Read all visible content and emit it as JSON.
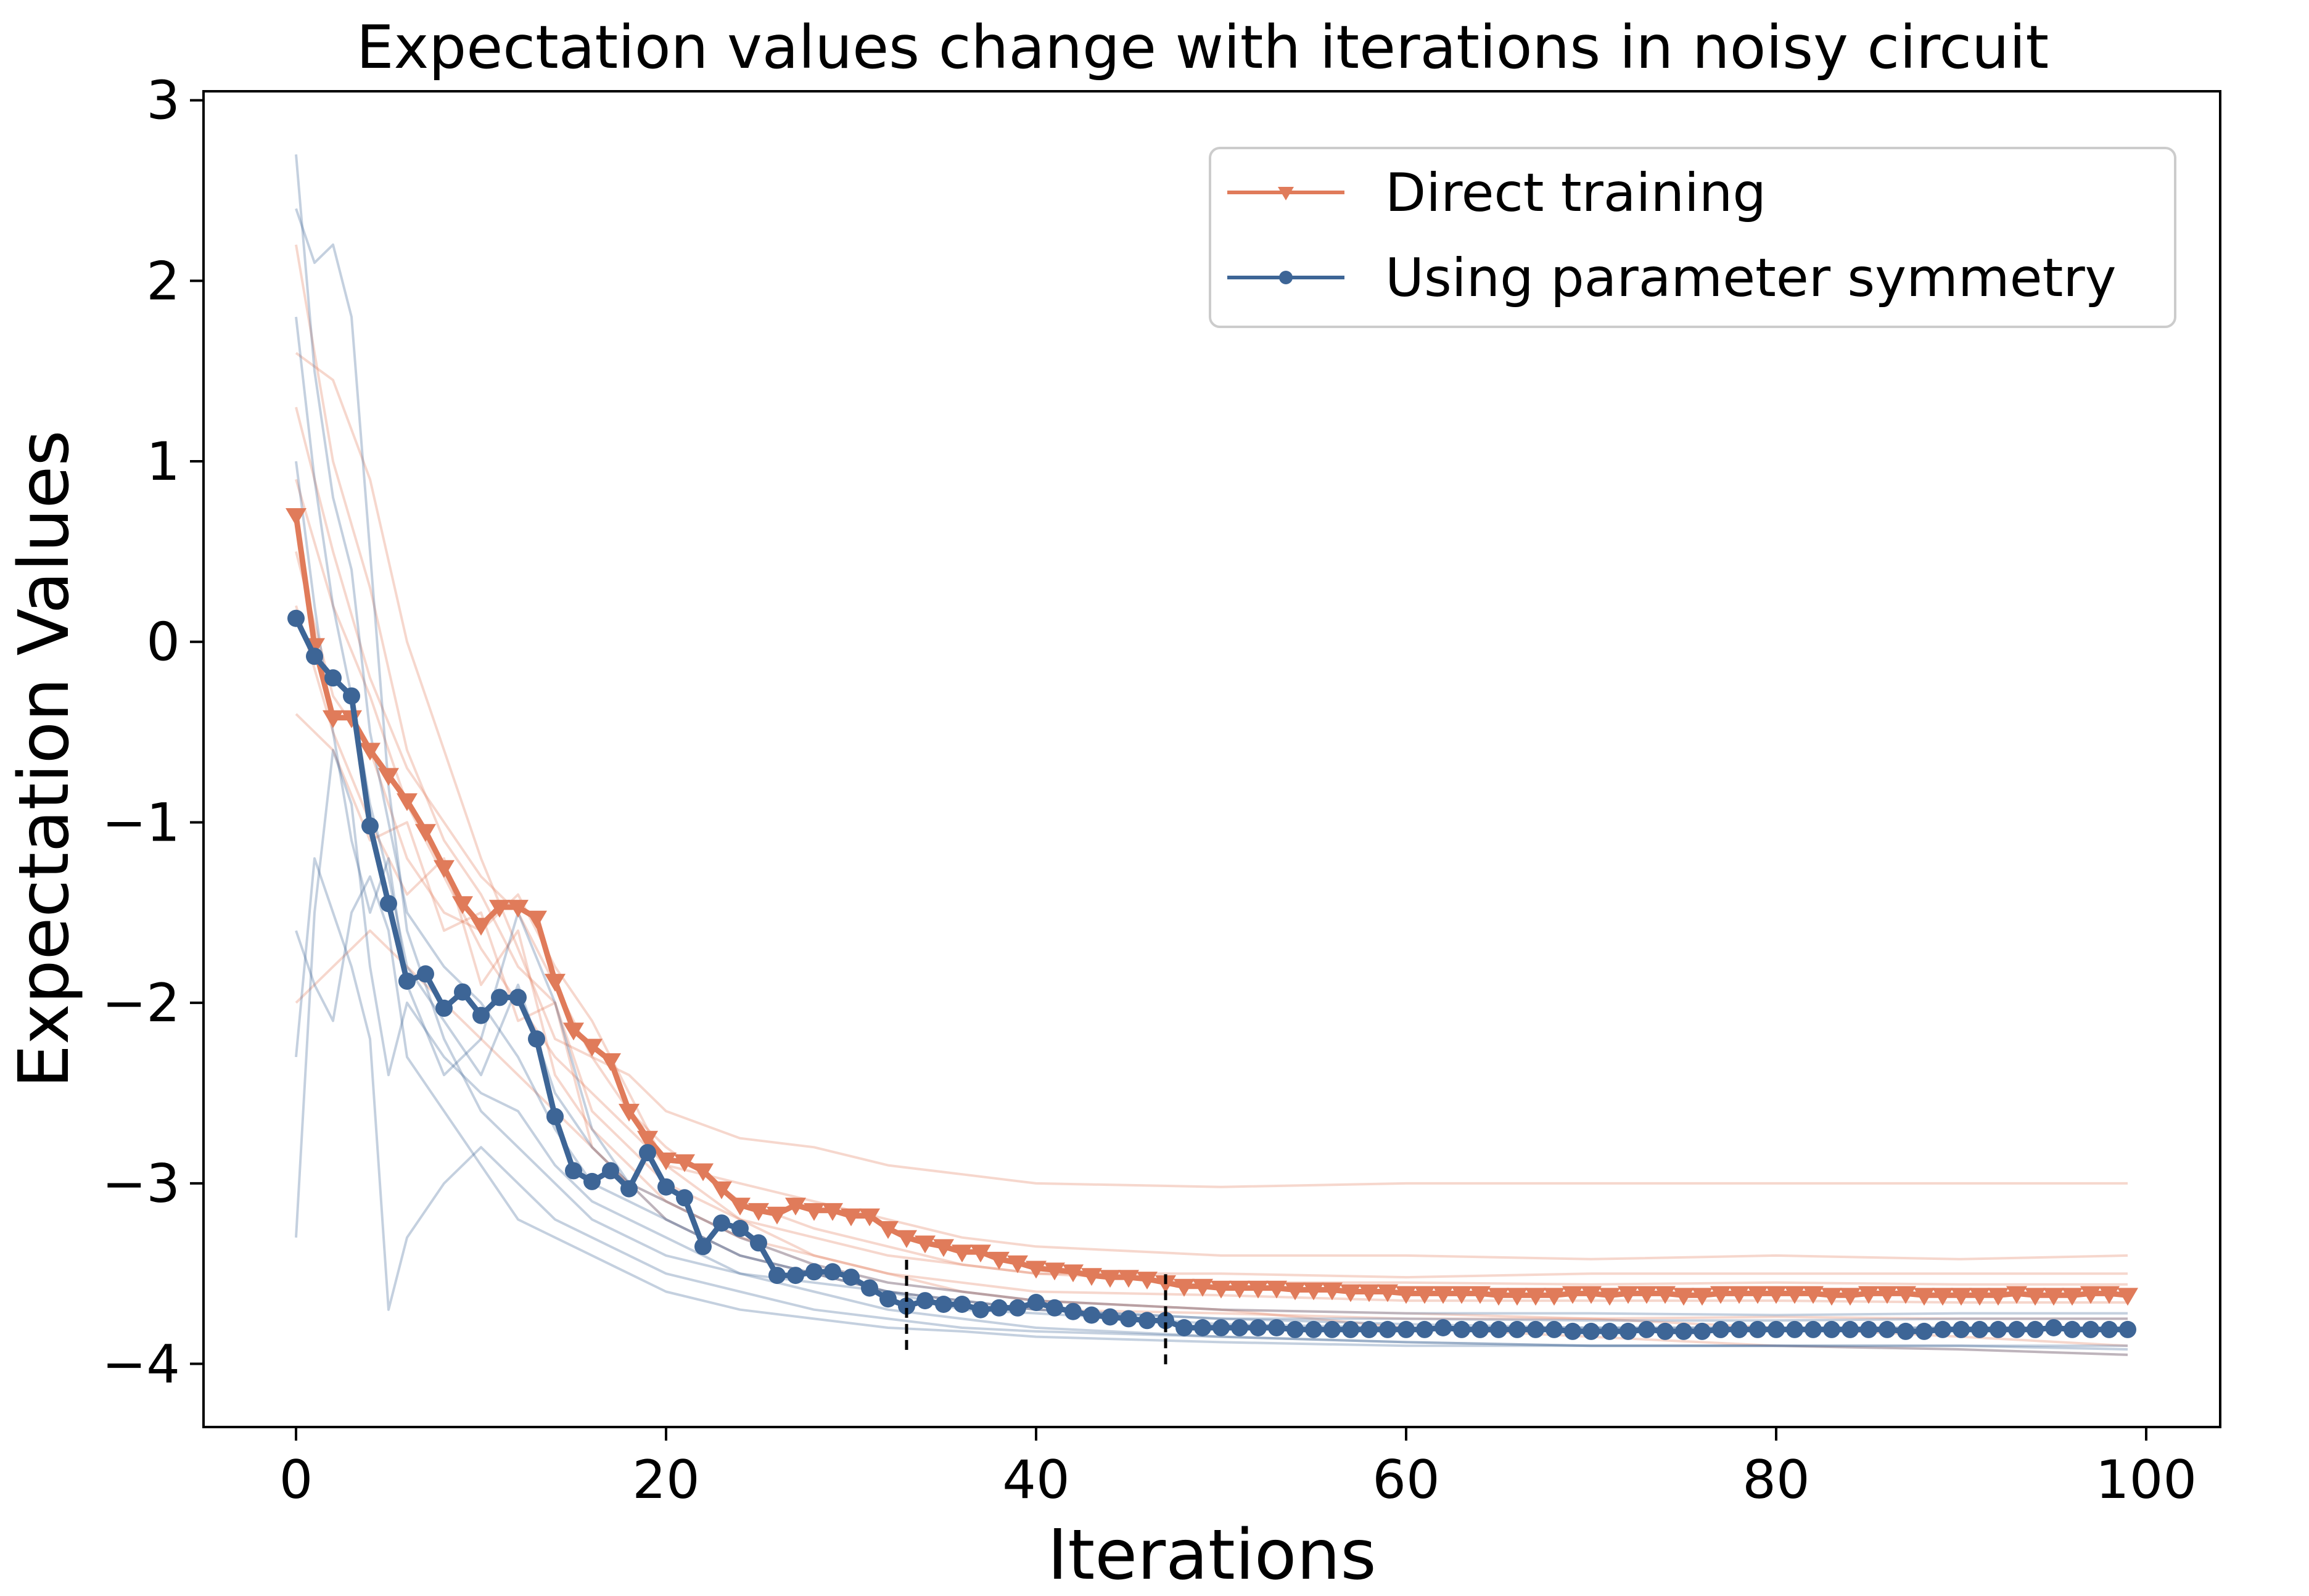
{
  "chart_data": {
    "type": "line",
    "title": "Expectation values change with iterations in noisy circuit",
    "xlabel": "Iterations",
    "ylabel": "Expectation Values",
    "xlim": [
      -5,
      104
    ],
    "ylim": [
      -4.35,
      3.05
    ],
    "xticks": [
      0,
      20,
      40,
      60,
      80,
      100
    ],
    "yticks": [
      3,
      2,
      1,
      0,
      -1,
      -2,
      -3,
      -4
    ],
    "xtick_labels": [
      "0",
      "20",
      "40",
      "60",
      "80",
      "100"
    ],
    "ytick_labels": [
      "3",
      "2",
      "1",
      "0",
      "−1",
      "−2",
      "−3",
      "−4"
    ],
    "grid": false,
    "legend_position": "top-right",
    "legend": [
      {
        "label": "Direct training",
        "color": "#e07b5a",
        "marker": "triangle-down"
      },
      {
        "label": "Using parameter symmetry",
        "color": "#3d6596",
        "marker": "circle"
      }
    ],
    "vertical_markers": [
      33,
      47
    ],
    "series": [
      {
        "name": "Direct training",
        "color": "#e07b5a",
        "marker": "triangle-down",
        "x": [
          0,
          1,
          2,
          3,
          4,
          5,
          6,
          7,
          8,
          9,
          10,
          11,
          12,
          13,
          14,
          15,
          16,
          17,
          18,
          19,
          20,
          21,
          22,
          23,
          24,
          25,
          26,
          27,
          28,
          29,
          30,
          31,
          32,
          33,
          34,
          35,
          36,
          37,
          38,
          39,
          40,
          41,
          42,
          43,
          44,
          45,
          46,
          47,
          48,
          49,
          50,
          51,
          52,
          53,
          54,
          55,
          56,
          57,
          58,
          59,
          60,
          61,
          62,
          63,
          64,
          65,
          66,
          67,
          68,
          69,
          70,
          71,
          72,
          73,
          74,
          75,
          76,
          77,
          78,
          79,
          80,
          81,
          82,
          83,
          84,
          85,
          86,
          87,
          88,
          89,
          90,
          91,
          92,
          93,
          94,
          95,
          96,
          97,
          98,
          99
        ],
        "values": [
          0.7,
          -0.02,
          -0.42,
          -0.42,
          -0.6,
          -0.74,
          -0.88,
          -1.05,
          -1.25,
          -1.45,
          -1.57,
          -1.47,
          -1.47,
          -1.53,
          -1.88,
          -2.15,
          -2.24,
          -2.32,
          -2.6,
          -2.75,
          -2.87,
          -2.88,
          -2.93,
          -3.03,
          -3.12,
          -3.15,
          -3.17,
          -3.12,
          -3.15,
          -3.15,
          -3.18,
          -3.18,
          -3.25,
          -3.3,
          -3.33,
          -3.35,
          -3.38,
          -3.38,
          -3.42,
          -3.44,
          -3.47,
          -3.48,
          -3.49,
          -3.51,
          -3.52,
          -3.52,
          -3.53,
          -3.55,
          -3.57,
          -3.57,
          -3.58,
          -3.58,
          -3.58,
          -3.58,
          -3.59,
          -3.59,
          -3.59,
          -3.6,
          -3.6,
          -3.6,
          -3.61,
          -3.61,
          -3.61,
          -3.61,
          -3.61,
          -3.62,
          -3.62,
          -3.62,
          -3.62,
          -3.61,
          -3.61,
          -3.62,
          -3.61,
          -3.61,
          -3.61,
          -3.62,
          -3.62,
          -3.61,
          -3.61,
          -3.61,
          -3.61,
          -3.61,
          -3.61,
          -3.62,
          -3.62,
          -3.61,
          -3.61,
          -3.61,
          -3.62,
          -3.62,
          -3.62,
          -3.62,
          -3.62,
          -3.61,
          -3.62,
          -3.62,
          -3.62,
          -3.61,
          -3.61,
          -3.62
        ]
      },
      {
        "name": "Using parameter symmetry",
        "color": "#3d6596",
        "marker": "circle",
        "x": [
          0,
          1,
          2,
          3,
          4,
          5,
          6,
          7,
          8,
          9,
          10,
          11,
          12,
          13,
          14,
          15,
          16,
          17,
          18,
          19,
          20,
          21,
          22,
          23,
          24,
          25,
          26,
          27,
          28,
          29,
          30,
          31,
          32,
          33,
          34,
          35,
          36,
          37,
          38,
          39,
          40,
          41,
          42,
          43,
          44,
          45,
          46,
          47,
          48,
          49,
          50,
          51,
          52,
          53,
          54,
          55,
          56,
          57,
          58,
          59,
          60,
          61,
          62,
          63,
          64,
          65,
          66,
          67,
          68,
          69,
          70,
          71,
          72,
          73,
          74,
          75,
          76,
          77,
          78,
          79,
          80,
          81,
          82,
          83,
          84,
          85,
          86,
          87,
          88,
          89,
          90,
          91,
          92,
          93,
          94,
          95,
          96,
          97,
          98,
          99
        ],
        "values": [
          0.13,
          -0.08,
          -0.2,
          -0.3,
          -1.02,
          -1.45,
          -1.88,
          -1.84,
          -2.03,
          -1.94,
          -2.07,
          -1.97,
          -1.97,
          -2.2,
          -2.63,
          -2.93,
          -2.99,
          -2.93,
          -3.03,
          -2.83,
          -3.02,
          -3.08,
          -3.35,
          -3.22,
          -3.25,
          -3.33,
          -3.51,
          -3.51,
          -3.49,
          -3.49,
          -3.52,
          -3.58,
          -3.64,
          -3.68,
          -3.65,
          -3.67,
          -3.67,
          -3.7,
          -3.69,
          -3.69,
          -3.66,
          -3.69,
          -3.71,
          -3.73,
          -3.74,
          -3.75,
          -3.76,
          -3.76,
          -3.8,
          -3.8,
          -3.8,
          -3.8,
          -3.8,
          -3.8,
          -3.81,
          -3.81,
          -3.81,
          -3.81,
          -3.81,
          -3.81,
          -3.81,
          -3.81,
          -3.8,
          -3.81,
          -3.81,
          -3.81,
          -3.81,
          -3.81,
          -3.81,
          -3.82,
          -3.82,
          -3.82,
          -3.82,
          -3.81,
          -3.82,
          -3.82,
          -3.82,
          -3.81,
          -3.81,
          -3.81,
          -3.81,
          -3.81,
          -3.81,
          -3.81,
          -3.81,
          -3.81,
          -3.81,
          -3.82,
          -3.82,
          -3.81,
          -3.81,
          -3.81,
          -3.81,
          -3.81,
          -3.81,
          -3.8,
          -3.81,
          -3.81,
          -3.81,
          -3.81
        ]
      }
    ],
    "background_traces": [
      {
        "color": "#e07b5a",
        "opacity": 0.3,
        "x": [
          0,
          2,
          4,
          6,
          8,
          10,
          12,
          14,
          16,
          18,
          20,
          24,
          28,
          32,
          36,
          40,
          50,
          60,
          70,
          80,
          90,
          99
        ],
        "values": [
          1.6,
          1.45,
          0.9,
          0.0,
          -0.6,
          -1.2,
          -1.7,
          -2.2,
          -2.3,
          -2.4,
          -2.6,
          -2.75,
          -2.8,
          -2.9,
          -2.95,
          -3.0,
          -3.02,
          -3.0,
          -3.0,
          -3.0,
          -3.0,
          -3.0
        ]
      },
      {
        "color": "#e07b5a",
        "opacity": 0.3,
        "x": [
          0,
          2,
          4,
          6,
          8,
          10,
          12,
          14,
          16,
          18,
          20,
          24,
          28,
          32,
          36,
          40,
          50,
          60,
          70,
          80,
          90,
          99
        ],
        "values": [
          0.9,
          0.2,
          -0.3,
          -0.9,
          -1.3,
          -1.7,
          -2.0,
          -2.3,
          -2.5,
          -2.7,
          -2.9,
          -3.0,
          -3.1,
          -3.2,
          -3.3,
          -3.35,
          -3.4,
          -3.4,
          -3.42,
          -3.4,
          -3.42,
          -3.4
        ]
      },
      {
        "color": "#e07b5a",
        "opacity": 0.3,
        "x": [
          0,
          2,
          4,
          6,
          8,
          10,
          12,
          14,
          16,
          18,
          20,
          24,
          28,
          32,
          36,
          40,
          50,
          60,
          70,
          80,
          90,
          99
        ],
        "values": [
          2.2,
          1.0,
          0.3,
          -0.6,
          -1.1,
          -1.4,
          -1.8,
          -2.0,
          -2.6,
          -2.8,
          -3.0,
          -3.2,
          -3.3,
          -3.4,
          -3.45,
          -3.5,
          -3.5,
          -3.52,
          -3.5,
          -3.5,
          -3.5,
          -3.5
        ]
      },
      {
        "color": "#e07b5a",
        "opacity": 0.3,
        "x": [
          0,
          2,
          4,
          6,
          8,
          10,
          12,
          14,
          16,
          18,
          20,
          24,
          28,
          32,
          36,
          40,
          50,
          60,
          70,
          80,
          90,
          99
        ],
        "values": [
          0.2,
          -0.5,
          -1.0,
          -1.4,
          -1.2,
          -1.9,
          -1.6,
          -2.4,
          -2.7,
          -2.9,
          -3.1,
          -3.3,
          -3.4,
          -3.5,
          -3.55,
          -3.6,
          -3.62,
          -3.65,
          -3.65,
          -3.65,
          -3.66,
          -3.66
        ]
      },
      {
        "color": "#e07b5a",
        "opacity": 0.3,
        "x": [
          0,
          2,
          4,
          6,
          8,
          10,
          12,
          14,
          16,
          18,
          20,
          24,
          28,
          32,
          36,
          40,
          50,
          60,
          70,
          80,
          90,
          99
        ],
        "values": [
          -0.4,
          -0.6,
          -1.1,
          -1.0,
          -1.6,
          -1.5,
          -2.1,
          -2.0,
          -2.8,
          -3.0,
          -3.2,
          -3.4,
          -3.5,
          -3.6,
          -3.65,
          -3.7,
          -3.72,
          -3.75,
          -3.75,
          -3.74,
          -3.75,
          -3.75
        ]
      },
      {
        "color": "#e07b5a",
        "opacity": 0.3,
        "x": [
          0,
          2,
          4,
          6,
          8,
          10,
          12,
          14,
          16,
          18,
          20,
          24,
          28,
          32,
          36,
          40,
          50,
          60,
          70,
          80,
          90,
          99
        ],
        "values": [
          -2.0,
          -1.8,
          -1.6,
          -1.8,
          -2.0,
          -2.2,
          -2.4,
          -2.6,
          -2.8,
          -3.0,
          -3.1,
          -3.3,
          -3.45,
          -3.55,
          -3.6,
          -3.65,
          -3.7,
          -3.72,
          -3.75,
          -3.8,
          -3.85,
          -3.9
        ]
      },
      {
        "color": "#e07b5a",
        "opacity": 0.3,
        "x": [
          0,
          2,
          4,
          6,
          8,
          10,
          12,
          14,
          16,
          18,
          20,
          24,
          28,
          32,
          36,
          40,
          50,
          60,
          70,
          80,
          90,
          99
        ],
        "values": [
          1.3,
          0.5,
          -0.2,
          -0.7,
          -1.0,
          -1.3,
          -1.5,
          -1.9,
          -2.3,
          -2.6,
          -2.8,
          -3.1,
          -3.25,
          -3.35,
          -3.45,
          -3.5,
          -3.55,
          -3.55,
          -3.56,
          -3.55,
          -3.56,
          -3.56
        ]
      },
      {
        "color": "#e07b5a",
        "opacity": 0.3,
        "x": [
          0,
          2,
          4,
          6,
          8,
          10,
          12,
          14,
          16,
          18,
          20,
          24,
          28,
          32,
          36,
          40,
          50,
          60,
          70,
          80,
          90,
          99
        ],
        "values": [
          0.5,
          -0.3,
          -0.6,
          -1.2,
          -1.5,
          -1.6,
          -1.4,
          -1.8,
          -2.1,
          -2.5,
          -2.9,
          -3.2,
          -3.4,
          -3.5,
          -3.6,
          -3.65,
          -3.7,
          -3.8,
          -3.85,
          -3.9,
          -3.92,
          -3.95
        ]
      },
      {
        "color": "#3d6596",
        "opacity": 0.3,
        "x": [
          0,
          1,
          2,
          3,
          4,
          5,
          6,
          8,
          10,
          12,
          14,
          16,
          18,
          20,
          24,
          28,
          32,
          36,
          40,
          50,
          60,
          70,
          80,
          90,
          99
        ],
        "values": [
          2.7,
          1.5,
          0.8,
          0.4,
          -0.5,
          -1.0,
          -1.5,
          -1.8,
          -2.0,
          -2.3,
          -2.7,
          -3.0,
          -3.1,
          -3.2,
          -3.4,
          -3.5,
          -3.6,
          -3.65,
          -3.7,
          -3.75,
          -3.78,
          -3.8,
          -3.8,
          -3.8,
          -3.8
        ]
      },
      {
        "color": "#3d6596",
        "opacity": 0.3,
        "x": [
          0,
          1,
          2,
          3,
          4,
          5,
          6,
          8,
          10,
          12,
          14,
          16,
          18,
          20,
          24,
          28,
          32,
          36,
          40,
          50,
          60,
          70,
          80,
          90,
          99
        ],
        "values": [
          2.4,
          2.1,
          2.2,
          1.8,
          0.5,
          -0.8,
          -1.6,
          -2.2,
          -2.6,
          -2.8,
          -3.0,
          -3.2,
          -3.3,
          -3.4,
          -3.5,
          -3.6,
          -3.7,
          -3.75,
          -3.8,
          -3.85,
          -3.88,
          -3.9,
          -3.9,
          -3.9,
          -3.92
        ]
      },
      {
        "color": "#3d6596",
        "opacity": 0.3,
        "x": [
          0,
          1,
          2,
          3,
          4,
          5,
          6,
          8,
          10,
          12,
          14,
          16,
          18,
          20,
          24,
          28,
          32,
          36,
          40,
          50,
          60,
          70,
          80,
          90,
          99
        ],
        "values": [
          -3.3,
          -1.5,
          -0.6,
          -0.9,
          -1.8,
          -2.4,
          -2.0,
          -2.3,
          -2.5,
          -2.6,
          -2.9,
          -3.1,
          -3.2,
          -3.3,
          -3.5,
          -3.55,
          -3.6,
          -3.65,
          -3.7,
          -3.75,
          -3.75,
          -3.76,
          -3.76,
          -3.75,
          -3.75
        ]
      },
      {
        "color": "#3d6596",
        "opacity": 0.3,
        "x": [
          0,
          1,
          2,
          3,
          4,
          5,
          6,
          8,
          10,
          12,
          14,
          16,
          18,
          20,
          24,
          28,
          32,
          36,
          40,
          50,
          60,
          70,
          80,
          90,
          99
        ],
        "values": [
          -2.3,
          -1.2,
          -1.5,
          -1.8,
          -2.2,
          -3.7,
          -3.3,
          -3.0,
          -2.8,
          -3.0,
          -3.2,
          -3.3,
          -3.4,
          -3.5,
          -3.6,
          -3.7,
          -3.75,
          -3.8,
          -3.82,
          -3.85,
          -3.88,
          -3.9,
          -3.9,
          -3.92,
          -3.95
        ]
      },
      {
        "color": "#3d6596",
        "opacity": 0.3,
        "x": [
          0,
          1,
          2,
          3,
          4,
          5,
          6,
          8,
          10,
          12,
          14,
          16,
          18,
          20,
          24,
          28,
          32,
          36,
          40,
          50,
          60,
          70,
          80,
          90,
          99
        ],
        "values": [
          1.8,
          0.9,
          0.2,
          -0.3,
          -0.9,
          -1.3,
          -1.8,
          -2.1,
          -2.4,
          -1.9,
          -2.5,
          -2.8,
          -3.0,
          -3.1,
          -3.3,
          -3.45,
          -3.55,
          -3.6,
          -3.65,
          -3.7,
          -3.72,
          -3.72,
          -3.73,
          -3.72,
          -3.72
        ]
      },
      {
        "color": "#3d6596",
        "opacity": 0.3,
        "x": [
          0,
          1,
          2,
          3,
          4,
          5,
          6,
          8,
          10,
          12,
          14,
          16,
          18,
          20,
          24,
          28,
          32,
          36,
          40,
          50,
          60,
          70,
          80,
          90,
          99
        ],
        "values": [
          -1.6,
          -1.9,
          -2.1,
          -1.5,
          -1.3,
          -1.6,
          -2.3,
          -2.6,
          -2.9,
          -3.2,
          -3.3,
          -3.4,
          -3.5,
          -3.6,
          -3.7,
          -3.75,
          -3.8,
          -3.82,
          -3.85,
          -3.88,
          -3.9,
          -3.9,
          -3.9,
          -3.9,
          -3.9
        ]
      },
      {
        "color": "#3d6596",
        "opacity": 0.3,
        "x": [
          0,
          1,
          2,
          3,
          4,
          5,
          6,
          8,
          10,
          12,
          14,
          16,
          18,
          20,
          24,
          28,
          32,
          36,
          40,
          50,
          60,
          70,
          80,
          90,
          99
        ],
        "values": [
          1.0,
          0.2,
          -0.5,
          -1.1,
          -1.5,
          -1.2,
          -1.9,
          -2.4,
          -2.2,
          -1.5,
          -2.0,
          -2.7,
          -3.0,
          -3.2,
          -3.4,
          -3.5,
          -3.6,
          -3.7,
          -3.72,
          -3.78,
          -3.8,
          -3.8,
          -3.8,
          -3.8,
          -3.8
        ]
      }
    ]
  }
}
